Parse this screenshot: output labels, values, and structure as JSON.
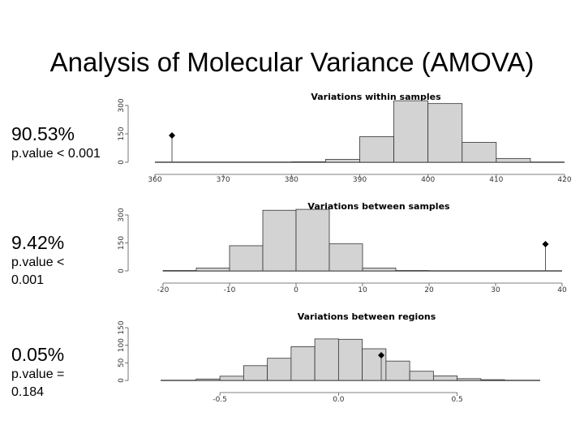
{
  "slide": {
    "title": "Analysis of Molecular Variance (AMOVA)"
  },
  "panels": [
    {
      "percent": "90.53%",
      "pvalue": "p.value < 0.001"
    },
    {
      "percent": "9.42%",
      "pvalue": "p.value < 0.001"
    },
    {
      "percent": "0.05%",
      "pvalue": "p.value = 0.184"
    }
  ],
  "colors": {
    "bar_fill": "#d3d3d3",
    "bar_stroke": "#333333",
    "axis": "#555555"
  },
  "chart_data": [
    {
      "type": "bar",
      "title": "Variations within samples",
      "xlim": [
        360,
        420
      ],
      "xticks": [
        360,
        370,
        380,
        390,
        400,
        410,
        420
      ],
      "xtick_labels": [
        "360",
        "370",
        "380",
        "390",
        "400",
        "410",
        "420"
      ],
      "ylim": [
        0,
        300
      ],
      "yticks": [
        0,
        150,
        300
      ],
      "ytick_labels": [
        "0",
        "150",
        "300"
      ],
      "bins": [
        [
          380,
          385
        ],
        [
          385,
          390
        ],
        [
          390,
          395
        ],
        [
          395,
          400
        ],
        [
          400,
          405
        ],
        [
          405,
          410
        ],
        [
          410,
          415
        ]
      ],
      "values": [
        2,
        15,
        135,
        325,
        310,
        105,
        20
      ],
      "observed": 362.5
    },
    {
      "type": "bar",
      "title": "Variations between samples",
      "xlim": [
        -20,
        40
      ],
      "xticks": [
        -20,
        -10,
        0,
        10,
        20,
        30,
        40
      ],
      "xtick_labels": [
        "-20",
        "-10",
        "0",
        "10",
        "20",
        "30",
        "40"
      ],
      "ylim": [
        0,
        300
      ],
      "yticks": [
        0,
        150,
        300
      ],
      "ytick_labels": [
        "0",
        "150",
        "300"
      ],
      "bins": [
        [
          -20,
          -15
        ],
        [
          -15,
          -10
        ],
        [
          -10,
          -5
        ],
        [
          -5,
          0
        ],
        [
          0,
          5
        ],
        [
          5,
          10
        ],
        [
          10,
          15
        ],
        [
          15,
          20
        ]
      ],
      "values": [
        2,
        15,
        135,
        325,
        330,
        145,
        15,
        2
      ],
      "observed": 37.5
    },
    {
      "type": "bar",
      "title": "Variations between regions",
      "xlim": [
        -0.75,
        0.85
      ],
      "xticks": [
        -0.5,
        0.0,
        0.5
      ],
      "xtick_labels": [
        "-0.5",
        "0.0",
        "0.5"
      ],
      "ylim": [
        0,
        150
      ],
      "yticks": [
        0,
        50,
        100,
        150
      ],
      "ytick_labels": [
        "0",
        "50",
        "100",
        "150"
      ],
      "bins": [
        [
          -0.6,
          -0.5
        ],
        [
          -0.5,
          -0.4
        ],
        [
          -0.4,
          -0.3
        ],
        [
          -0.3,
          -0.2
        ],
        [
          -0.2,
          -0.1
        ],
        [
          -0.1,
          0.0
        ],
        [
          0.0,
          0.1
        ],
        [
          0.1,
          0.2
        ],
        [
          0.2,
          0.3
        ],
        [
          0.3,
          0.4
        ],
        [
          0.4,
          0.5
        ],
        [
          0.5,
          0.6
        ],
        [
          0.6,
          0.7
        ]
      ],
      "values": [
        4,
        12,
        42,
        63,
        96,
        118,
        117,
        90,
        55,
        26,
        13,
        5,
        2
      ],
      "observed": 0.18
    }
  ]
}
